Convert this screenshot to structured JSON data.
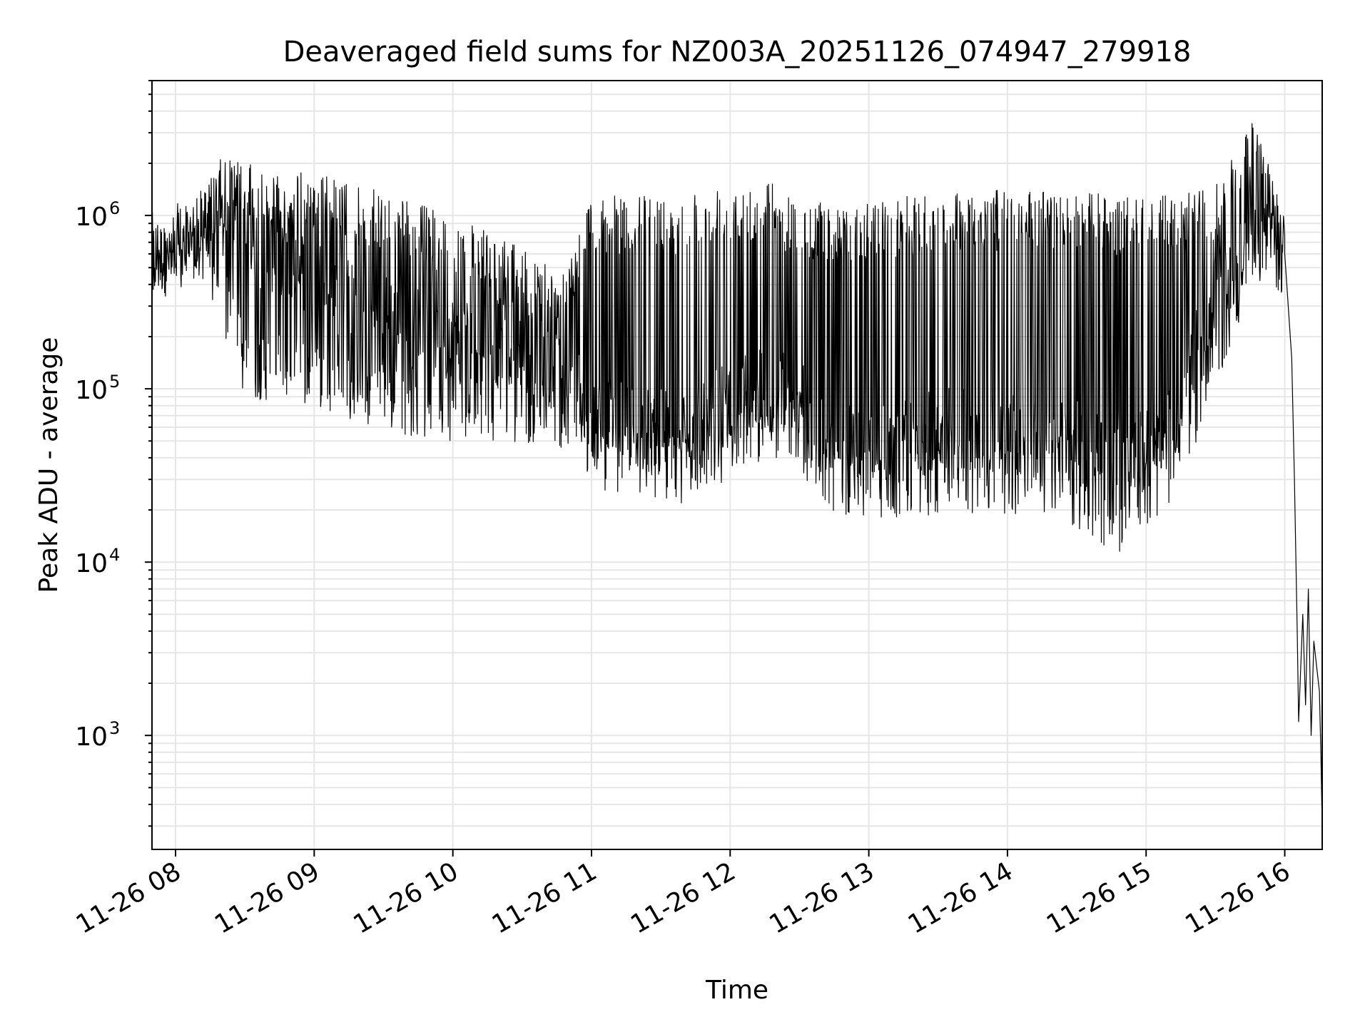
{
  "chart_data": {
    "type": "line",
    "title": "Deaveraged field sums for NZ003A_20251126_074947_279918",
    "xlabel": "Time",
    "ylabel": "Peak ADU - average",
    "yscale": "log",
    "ylim": [
      220,
      6000000
    ],
    "xlim_hours": [
      7.83,
      16.27
    ],
    "grid": true,
    "line_color": "#000000",
    "grid_color": "#e6e6e6",
    "x_ticks": [
      {
        "label": "11-26 08",
        "hour": 8
      },
      {
        "label": "11-26 09",
        "hour": 9
      },
      {
        "label": "11-26 10",
        "hour": 10
      },
      {
        "label": "11-26 11",
        "hour": 11
      },
      {
        "label": "11-26 12",
        "hour": 12
      },
      {
        "label": "11-26 13",
        "hour": 13
      },
      {
        "label": "11-26 14",
        "hour": 14
      },
      {
        "label": "11-26 15",
        "hour": 15
      },
      {
        "label": "11-26 16",
        "hour": 16
      }
    ],
    "y_ticks": [
      {
        "base": "10",
        "exp": "3",
        "value": 1000
      },
      {
        "base": "10",
        "exp": "4",
        "value": 10000
      },
      {
        "base": "10",
        "exp": "5",
        "value": 100000
      },
      {
        "base": "10",
        "exp": "6",
        "value": 1000000
      }
    ],
    "series": [
      {
        "name": "Peak ADU - average",
        "envelope": [
          {
            "hour": 7.83,
            "high": 750000,
            "low": 420000,
            "base": 550000
          },
          {
            "hour": 8.0,
            "high": 1000000,
            "low": 300000,
            "base": 650000
          },
          {
            "hour": 8.2,
            "high": 1400000,
            "low": 400000,
            "base": 800000
          },
          {
            "hour": 8.35,
            "high": 2300000,
            "low": 200000,
            "base": 900000
          },
          {
            "hour": 8.5,
            "high": 2000000,
            "low": 90000,
            "base": 700000
          },
          {
            "hour": 8.8,
            "high": 1800000,
            "low": 80000,
            "base": 600000
          },
          {
            "hour": 9.0,
            "high": 1800000,
            "low": 80000,
            "base": 450000
          },
          {
            "hour": 9.3,
            "high": 1500000,
            "low": 60000,
            "base": 300000
          },
          {
            "hour": 9.6,
            "high": 1300000,
            "low": 55000,
            "base": 250000
          },
          {
            "hour": 10.0,
            "high": 1000000,
            "low": 50000,
            "base": 200000
          },
          {
            "hour": 10.4,
            "high": 700000,
            "low": 50000,
            "base": 180000
          },
          {
            "hour": 10.8,
            "high": 500000,
            "low": 45000,
            "base": 130000
          },
          {
            "hour": 11.0,
            "high": 1300000,
            "low": 26000,
            "base": 70000
          },
          {
            "hour": 11.3,
            "high": 1300000,
            "low": 25000,
            "base": 60000
          },
          {
            "hour": 11.6,
            "high": 1300000,
            "low": 21000,
            "base": 55000
          },
          {
            "hour": 12.0,
            "high": 1600000,
            "low": 30000,
            "base": 90000
          },
          {
            "hour": 12.3,
            "high": 1600000,
            "low": 40000,
            "base": 100000
          },
          {
            "hour": 12.5,
            "high": 1200000,
            "low": 40000,
            "base": 100000
          },
          {
            "hour": 12.6,
            "high": 1200000,
            "low": 20000,
            "base": 50000
          },
          {
            "hour": 13.0,
            "high": 1200000,
            "low": 18000,
            "base": 45000
          },
          {
            "hour": 13.3,
            "high": 1300000,
            "low": 17000,
            "base": 50000
          },
          {
            "hour": 13.6,
            "high": 1400000,
            "low": 20000,
            "base": 60000
          },
          {
            "hour": 14.0,
            "high": 1400000,
            "low": 18000,
            "base": 55000
          },
          {
            "hour": 14.4,
            "high": 1400000,
            "low": 17000,
            "base": 50000
          },
          {
            "hour": 14.8,
            "high": 1300000,
            "low": 11000,
            "base": 45000
          },
          {
            "hour": 15.2,
            "high": 1300000,
            "low": 22000,
            "base": 60000
          },
          {
            "hour": 15.5,
            "high": 1500000,
            "low": 100000,
            "base": 400000
          },
          {
            "hour": 15.8,
            "high": 3800000,
            "low": 400000,
            "base": 800000
          },
          {
            "hour": 16.0,
            "high": 1000000,
            "low": 400000,
            "base": 600000
          }
        ],
        "tail": [
          {
            "hour": 16.0,
            "value": 600000
          },
          {
            "hour": 16.05,
            "value": 150000
          },
          {
            "hour": 16.07,
            "value": 30000
          },
          {
            "hour": 16.09,
            "value": 4000
          },
          {
            "hour": 16.1,
            "value": 1200
          },
          {
            "hour": 16.13,
            "value": 5000
          },
          {
            "hour": 16.15,
            "value": 1500
          },
          {
            "hour": 16.17,
            "value": 7000
          },
          {
            "hour": 16.19,
            "value": 1000
          },
          {
            "hour": 16.21,
            "value": 3500
          },
          {
            "hour": 16.23,
            "value": 2500
          },
          {
            "hour": 16.25,
            "value": 1800
          },
          {
            "hour": 16.26,
            "value": 800
          },
          {
            "hour": 16.27,
            "value": 300
          }
        ]
      }
    ]
  }
}
